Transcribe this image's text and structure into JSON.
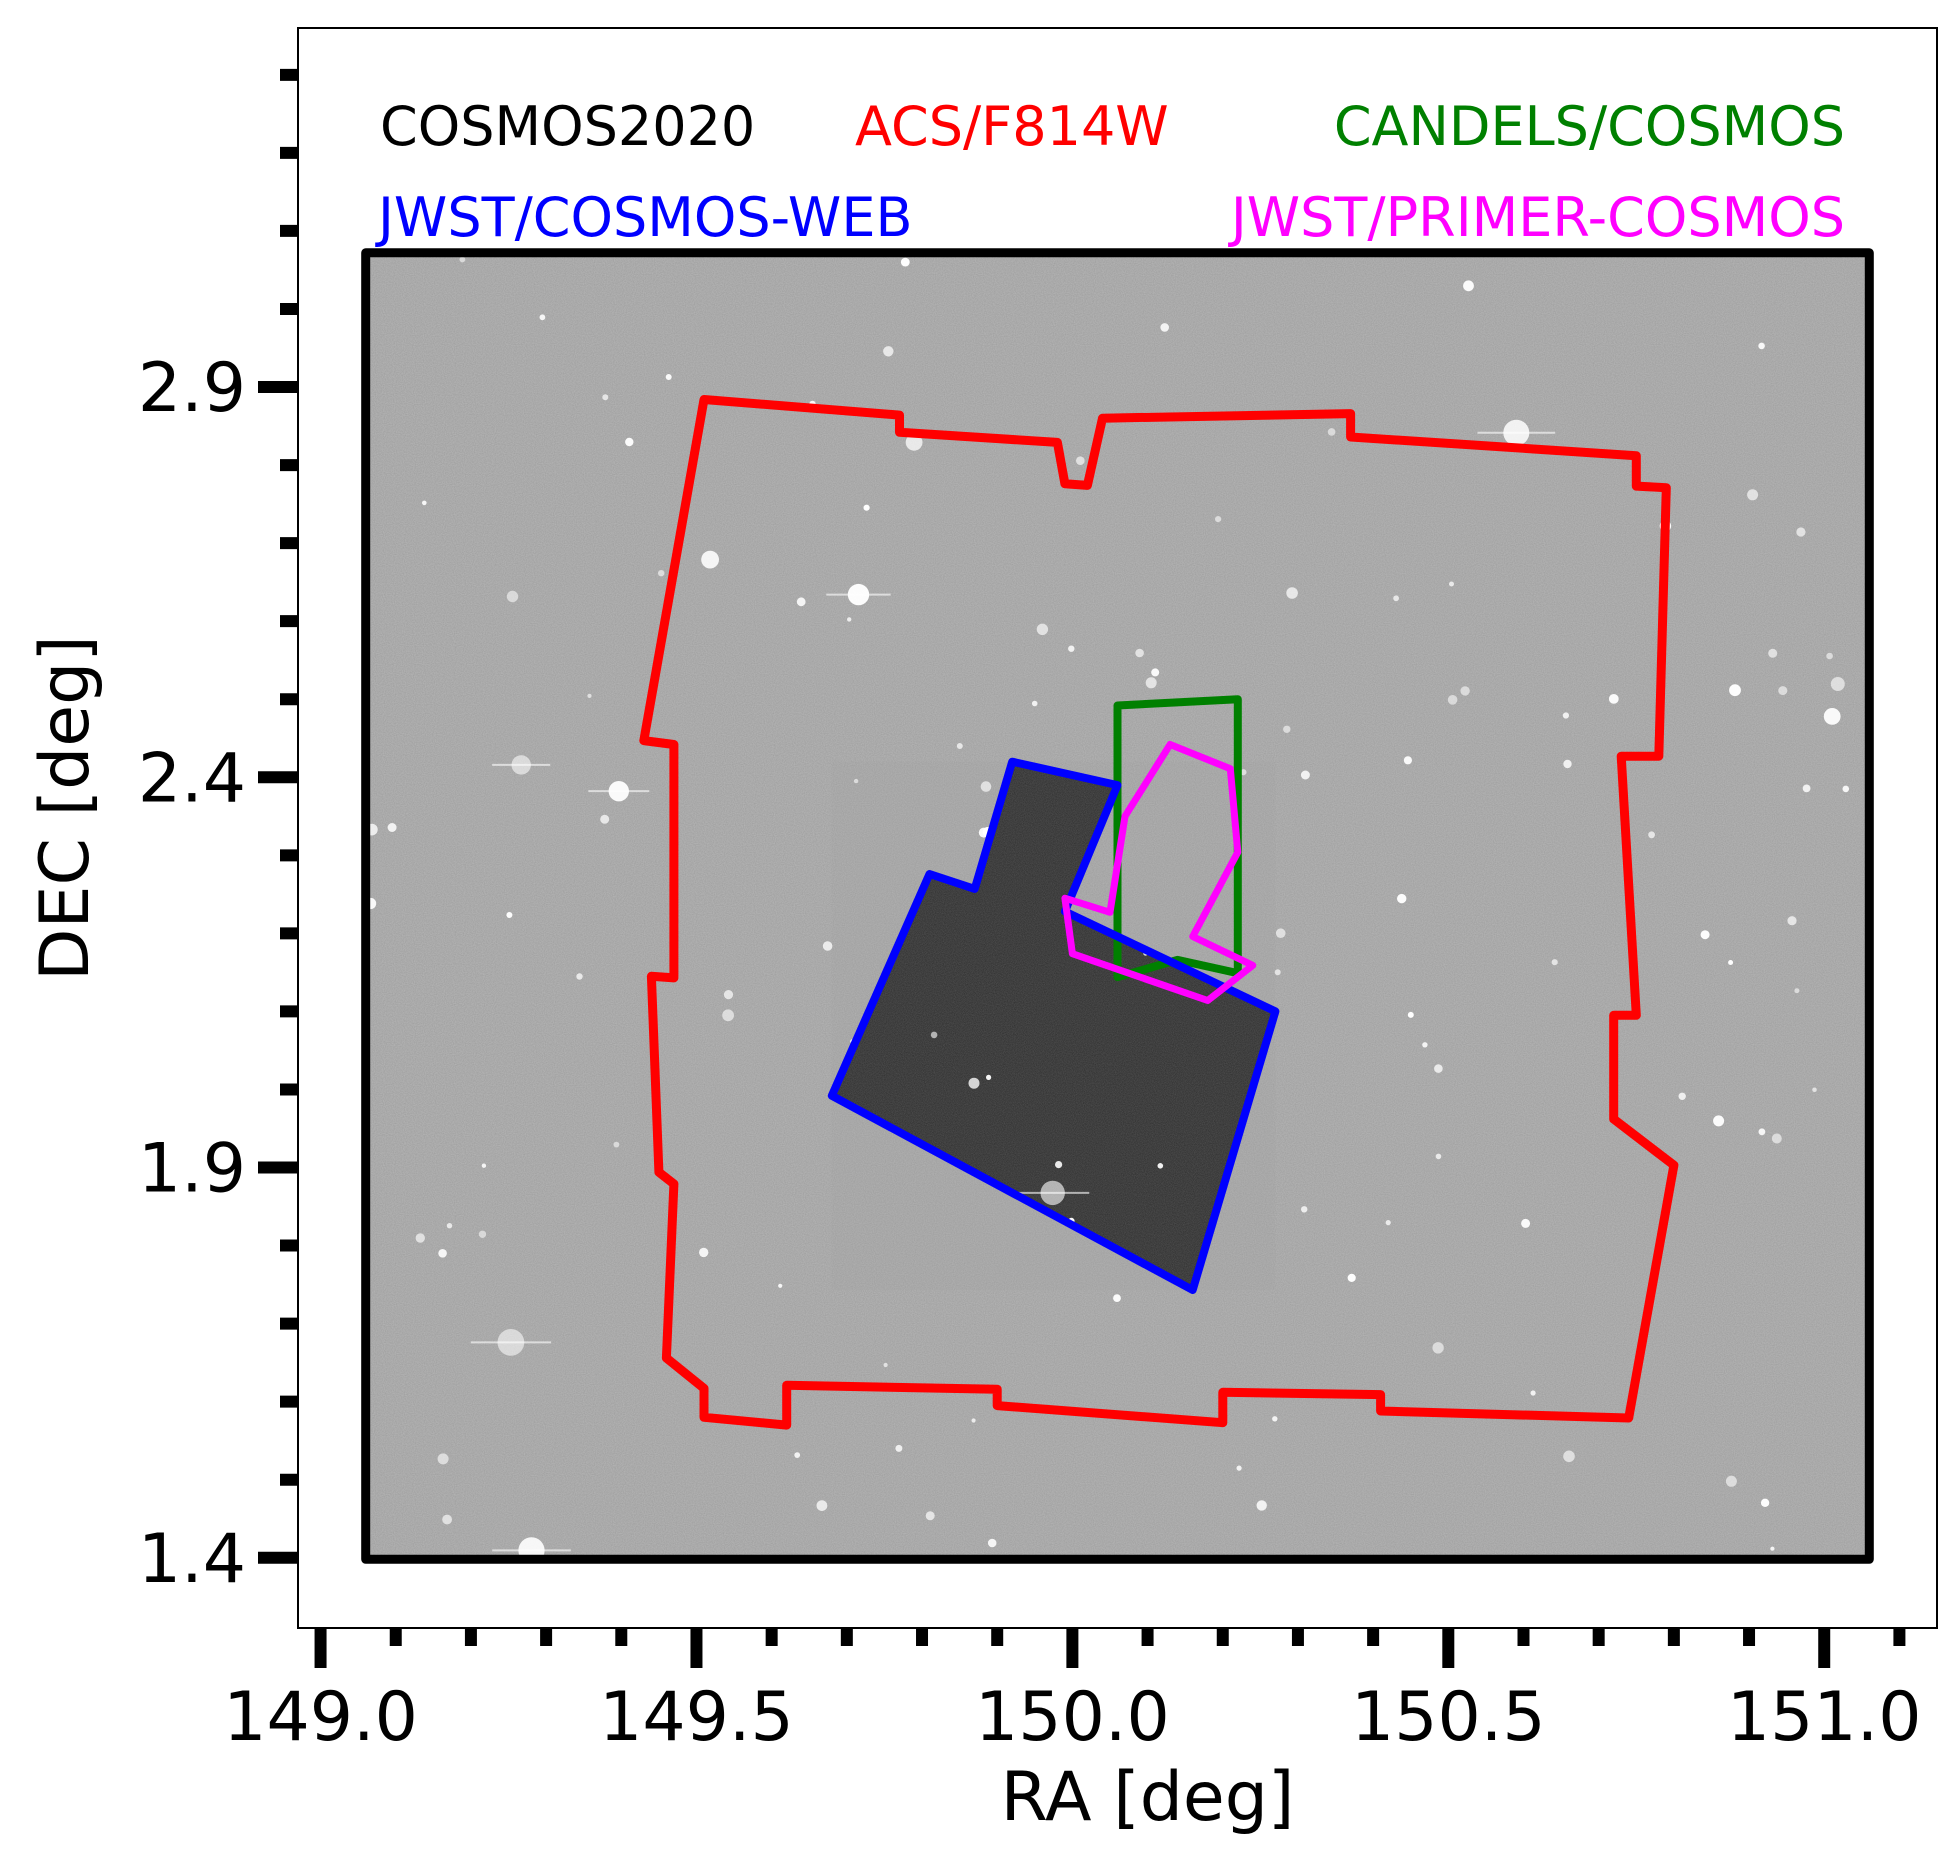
{
  "chart_data": {
    "type": "scatter",
    "title": "",
    "xlabel": "RA [deg]",
    "ylabel": "DEC [deg]",
    "xlim": [
      148.97,
      151.15
    ],
    "ylim": [
      1.31,
      3.36
    ],
    "grid": false,
    "x_ticks": [
      149.0,
      149.5,
      150.0,
      150.5,
      151.0
    ],
    "x_tick_labels": [
      "149.0",
      "149.5",
      "150.0",
      "150.5",
      "151.0"
    ],
    "y_ticks": [
      1.4,
      1.9,
      2.4,
      2.9
    ],
    "y_tick_labels": [
      "1.4",
      "1.9",
      "2.4",
      "2.9"
    ],
    "x_minor_step": 0.1,
    "y_minor_step": 0.1,
    "background_image": "COSMOS2020 grayscale sky map with stars",
    "legend_location": "top",
    "series": [
      {
        "name": "COSMOS2020",
        "color": "#000000",
        "points": [
          [
            149.06,
            3.072
          ],
          [
            151.06,
            3.072
          ],
          [
            151.06,
            1.398
          ],
          [
            149.06,
            1.398
          ]
        ]
      },
      {
        "name": "ACS/F814W",
        "color": "#ff0000",
        "points": [
          [
            149.51,
            2.884
          ],
          [
            149.77,
            2.864
          ],
          [
            149.77,
            2.842
          ],
          [
            149.98,
            2.829
          ],
          [
            149.99,
            2.776
          ],
          [
            150.02,
            2.774
          ],
          [
            150.04,
            2.86
          ],
          [
            150.37,
            2.866
          ],
          [
            150.37,
            2.836
          ],
          [
            150.75,
            2.812
          ],
          [
            150.75,
            2.773
          ],
          [
            150.79,
            2.771
          ],
          [
            150.78,
            2.427
          ],
          [
            150.73,
            2.427
          ],
          [
            150.75,
            2.095
          ],
          [
            150.72,
            2.095
          ],
          [
            150.72,
            1.962
          ],
          [
            150.8,
            1.903
          ],
          [
            150.74,
            1.579
          ],
          [
            150.41,
            1.588
          ],
          [
            150.41,
            1.609
          ],
          [
            150.2,
            1.612
          ],
          [
            150.2,
            1.573
          ],
          [
            149.9,
            1.595
          ],
          [
            149.9,
            1.616
          ],
          [
            149.62,
            1.621
          ],
          [
            149.62,
            1.57
          ],
          [
            149.51,
            1.58
          ],
          [
            149.51,
            1.617
          ],
          [
            149.46,
            1.656
          ],
          [
            149.47,
            1.879
          ],
          [
            149.45,
            1.894
          ],
          [
            149.44,
            2.145
          ],
          [
            149.47,
            2.143
          ],
          [
            149.47,
            2.442
          ],
          [
            149.43,
            2.447
          ]
        ]
      },
      {
        "name": "CANDELS/COSMOS",
        "color": "#008000",
        "points": [
          [
            150.06,
            2.492
          ],
          [
            150.22,
            2.5
          ],
          [
            150.22,
            2.149
          ],
          [
            150.14,
            2.166
          ],
          [
            150.06,
            2.144
          ]
        ]
      },
      {
        "name": "JWST/COSMOS-WEB",
        "color": "#0000ff",
        "points": [
          [
            149.92,
            2.42
          ],
          [
            150.06,
            2.39
          ],
          [
            149.99,
            2.228
          ],
          [
            150.27,
            2.1
          ],
          [
            150.16,
            1.743
          ],
          [
            149.68,
            1.992
          ],
          [
            149.81,
            2.276
          ],
          [
            149.87,
            2.257
          ]
        ]
      },
      {
        "name": "JWST/PRIMER-COSMOS",
        "color": "#ff00ff",
        "points": [
          [
            150.13,
            2.442
          ],
          [
            150.21,
            2.411
          ],
          [
            150.22,
            2.304
          ],
          [
            150.16,
            2.196
          ],
          [
            150.24,
            2.159
          ],
          [
            150.18,
            2.114
          ],
          [
            150.0,
            2.174
          ],
          [
            149.99,
            2.245
          ],
          [
            150.05,
            2.227
          ],
          [
            150.07,
            2.35
          ]
        ]
      }
    ]
  }
}
